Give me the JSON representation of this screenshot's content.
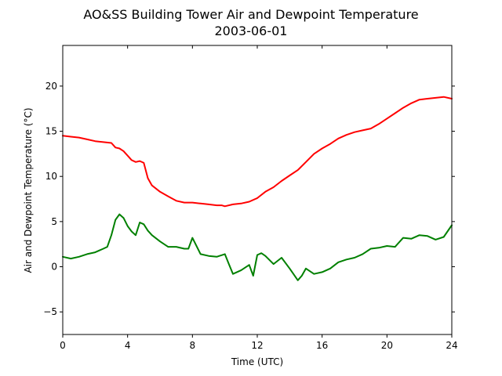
{
  "chart_data": {
    "type": "line",
    "title": "AO&SS Building Tower Air and Dewpoint Temperature",
    "subtitle": "2003-06-01",
    "xlabel": "Time (UTC)",
    "ylabel": "Air and Dewpoint Temperature (°C)",
    "xlim": [
      0,
      24
    ],
    "ylim": [
      -7.5,
      24.5
    ],
    "xticks": [
      0,
      4,
      8,
      12,
      16,
      20,
      24
    ],
    "xtick_labels": [
      "0",
      "4",
      "8",
      "12",
      "16",
      "20",
      "24"
    ],
    "yticks": [
      -5,
      0,
      5,
      10,
      15,
      20
    ],
    "ytick_labels": [
      "−5",
      "0",
      "5",
      "10",
      "15",
      "20"
    ],
    "grid": false,
    "legend": "none",
    "series": [
      {
        "color": "#ff0000",
        "x": [
          0,
          0.5,
          1,
          1.5,
          2,
          2.5,
          3,
          3.25,
          3.5,
          3.75,
          4,
          4.25,
          4.5,
          4.75,
          5,
          5.25,
          5.5,
          6,
          6.5,
          7,
          7.5,
          8,
          8.5,
          9,
          9.5,
          9.8,
          10,
          10.5,
          11,
          11.5,
          12,
          12.5,
          13,
          13.5,
          14,
          14.5,
          15,
          15.5,
          16,
          16.5,
          17,
          17.5,
          18,
          18.5,
          19,
          19.5,
          20,
          20.5,
          21,
          21.5,
          22,
          22.5,
          23,
          23.5,
          24
        ],
        "y": [
          14.5,
          14.4,
          14.3,
          14.1,
          13.9,
          13.8,
          13.7,
          13.2,
          13.1,
          12.8,
          12.3,
          11.8,
          11.6,
          11.7,
          11.5,
          9.8,
          9.0,
          8.3,
          7.8,
          7.3,
          7.1,
          7.1,
          7.0,
          6.9,
          6.8,
          6.8,
          6.7,
          6.9,
          7.0,
          7.2,
          7.6,
          8.3,
          8.8,
          9.5,
          10.1,
          10.7,
          11.6,
          12.5,
          13.1,
          13.6,
          14.2,
          14.6,
          14.9,
          15.1,
          15.3,
          15.8,
          16.4,
          17.0,
          17.6,
          18.1,
          18.5,
          18.6,
          18.7,
          18.8,
          18.6
        ]
      },
      {
        "color": "#008000",
        "x": [
          0,
          0.5,
          1,
          1.5,
          2,
          2.5,
          2.75,
          3,
          3.25,
          3.5,
          3.75,
          4,
          4.25,
          4.5,
          4.75,
          5,
          5.25,
          5.5,
          6,
          6.5,
          7,
          7.5,
          7.75,
          8,
          8.5,
          9,
          9.5,
          10,
          10.25,
          10.5,
          11,
          11.5,
          11.75,
          12,
          12.25,
          12.5,
          13,
          13.5,
          14,
          14.5,
          14.75,
          15,
          15.5,
          16,
          16.5,
          17,
          17.5,
          18,
          18.5,
          19,
          19.5,
          20,
          20.5,
          21,
          21.5,
          22,
          22.5,
          23,
          23.5,
          24
        ],
        "y": [
          1.1,
          0.9,
          1.1,
          1.4,
          1.6,
          2.0,
          2.2,
          3.5,
          5.2,
          5.8,
          5.4,
          4.5,
          3.9,
          3.5,
          4.9,
          4.7,
          4.0,
          3.5,
          2.8,
          2.2,
          2.2,
          2.0,
          2.0,
          3.2,
          1.4,
          1.2,
          1.1,
          1.4,
          0.3,
          -0.8,
          -0.4,
          0.2,
          -1.0,
          1.3,
          1.5,
          1.2,
          0.3,
          1.0,
          -0.2,
          -1.5,
          -1.0,
          -0.2,
          -0.8,
          -0.6,
          -0.2,
          0.5,
          0.8,
          1.0,
          1.4,
          2.0,
          2.1,
          2.3,
          2.2,
          3.2,
          3.1,
          3.5,
          3.4,
          3.0,
          3.3,
          4.6
        ]
      }
    ]
  }
}
